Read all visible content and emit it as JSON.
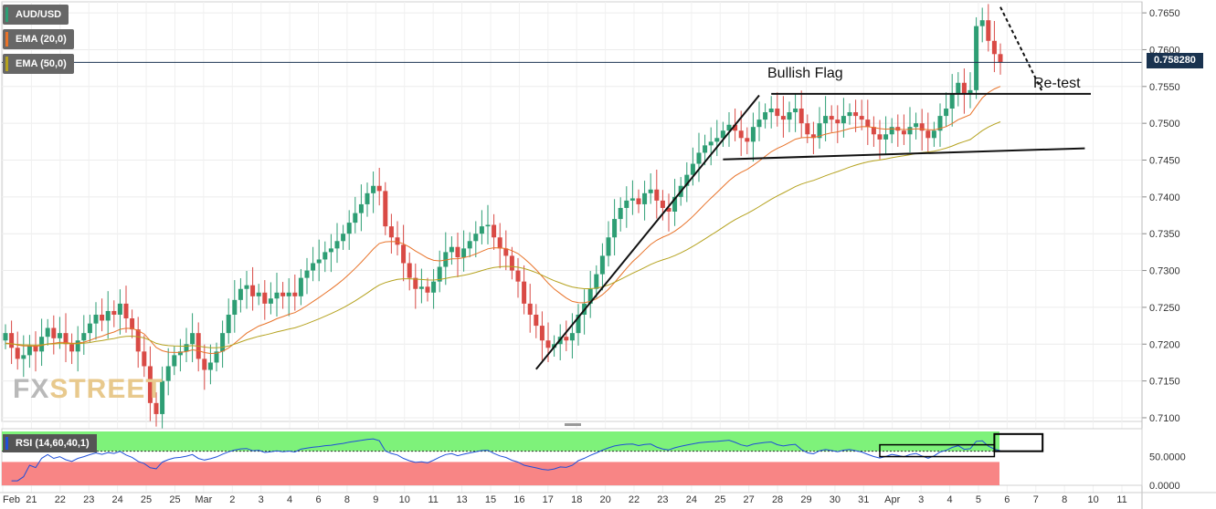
{
  "chart_data": {
    "type": "candlestick",
    "symbol": "AUD/USD",
    "current_price": "0.758280",
    "indicators": [
      "EMA (20,0)",
      "EMA (50,0)"
    ],
    "indicator_colors": {
      "ema20": "#e8732a",
      "ema50": "#b5a21f",
      "up": "#2e9e74",
      "down": "#d94a45"
    },
    "y_ticks": [
      "0.7650",
      "0.7600",
      "0.7550",
      "0.7500",
      "0.7450",
      "0.7400",
      "0.7350",
      "0.7300",
      "0.7250",
      "0.7200",
      "0.7150",
      "0.7100"
    ],
    "ylim": [
      0.7095,
      0.7665
    ],
    "x_ticks": [
      "Feb",
      "21",
      "22",
      "23",
      "24",
      "25",
      "25",
      "Mar",
      "2",
      "3",
      "4",
      "6",
      "8",
      "9",
      "10",
      "11",
      "13",
      "15",
      "16",
      "17",
      "18",
      "20",
      "22",
      "23",
      "24",
      "25",
      "27",
      "28",
      "29",
      "30",
      "31",
      "Apr",
      "3",
      "4",
      "5",
      "6",
      "7",
      "8",
      "10",
      "11"
    ],
    "candles": [
      0.7215,
      0.7195,
      0.718,
      0.7185,
      0.7198,
      0.719,
      0.721,
      0.7222,
      0.7208,
      0.7215,
      0.72,
      0.719,
      0.7205,
      0.7215,
      0.7228,
      0.724,
      0.7232,
      0.7245,
      0.724,
      0.7255,
      0.7235,
      0.722,
      0.719,
      0.717,
      0.712,
      0.7105,
      0.715,
      0.717,
      0.7185,
      0.719,
      0.72,
      0.7215,
      0.718,
      0.7165,
      0.7175,
      0.719,
      0.7215,
      0.724,
      0.726,
      0.7275,
      0.728,
      0.7265,
      0.727,
      0.7255,
      0.7262,
      0.727,
      0.7265,
      0.727,
      0.7265,
      0.729,
      0.73,
      0.731,
      0.7315,
      0.7325,
      0.733,
      0.734,
      0.735,
      0.7365,
      0.7378,
      0.739,
      0.7405,
      0.7415,
      0.7408,
      0.736,
      0.7345,
      0.7335,
      0.731,
      0.729,
      0.7275,
      0.7278,
      0.727,
      0.7285,
      0.7305,
      0.7325,
      0.7332,
      0.7318,
      0.733,
      0.734,
      0.735,
      0.736,
      0.7362,
      0.7345,
      0.733,
      0.732,
      0.73,
      0.7285,
      0.7255,
      0.724,
      0.7225,
      0.7205,
      0.7195,
      0.72,
      0.721,
      0.7205,
      0.7215,
      0.724,
      0.7255,
      0.7275,
      0.7295,
      0.732,
      0.7345,
      0.737,
      0.7385,
      0.7395,
      0.7398,
      0.739,
      0.7405,
      0.741,
      0.7395,
      0.7385,
      0.738,
      0.74,
      0.7415,
      0.743,
      0.7445,
      0.746,
      0.747,
      0.7475,
      0.748,
      0.749,
      0.7498,
      0.749,
      0.748,
      0.7475,
      0.7495,
      0.7505,
      0.7515,
      0.752,
      0.751,
      0.7505,
      0.7515,
      0.752,
      0.75,
      0.7485,
      0.748,
      0.75,
      0.751,
      0.7505,
      0.75,
      0.751,
      0.7515,
      0.751,
      0.7505,
      0.7495,
      0.7485,
      0.7478,
      0.7485,
      0.7495,
      0.749,
      0.7485,
      0.7495,
      0.75,
      0.749,
      0.748,
      0.749,
      0.751,
      0.752,
      0.754,
      0.7555,
      0.754,
      0.7545,
      0.7632,
      0.764,
      0.7612,
      0.7594,
      0.7583
    ]
  },
  "legend": {
    "symbol": "AUD/USD",
    "ema20": "EMA (20,0)",
    "ema50": "EMA (50,0)"
  },
  "price_tag": "0.758280",
  "annotations": {
    "bullish_flag": "Bullish Flag",
    "retest": "Re-test"
  },
  "rsi": {
    "label": "RSI (14,60,40,1)",
    "y_ticks": [
      "50.0000",
      "0.0000"
    ],
    "upper_color": "#7ef27a",
    "lower_color": "#f88585"
  },
  "watermark": {
    "part1": "FX",
    "part2": "STREET"
  }
}
